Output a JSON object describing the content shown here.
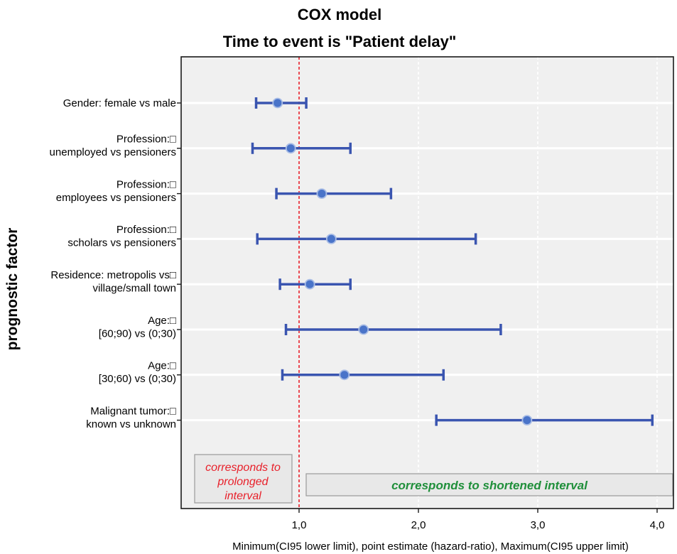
{
  "chart_data": {
    "type": "forest",
    "title": "COX model",
    "subtitle": "Time to event is \"Patient delay\"",
    "xlabel": "Minimum(CI95 lower limit), point estimate (hazard-ratio), Maximum(CI95 upper limit)",
    "ylabel": "prognostic factor",
    "xlim": [
      0.0,
      4.2
    ],
    "xticks": [
      1.0,
      2.0,
      3.0,
      4.0
    ],
    "xtick_labels": [
      "1,0",
      "2,0",
      "3,0",
      "4,0"
    ],
    "reference_line": 1.0,
    "grid": true,
    "categories": [
      {
        "lines": [
          "Gender: female vs male"
        ],
        "lower": 0.64,
        "estimate": 0.82,
        "upper": 1.06
      },
      {
        "lines": [
          "Profession:□",
          "unemployed vs pensioners"
        ],
        "lower": 0.61,
        "estimate": 0.93,
        "upper": 1.43
      },
      {
        "lines": [
          "Profession:□",
          "employees vs pensioners"
        ],
        "lower": 0.81,
        "estimate": 1.19,
        "upper": 1.77
      },
      {
        "lines": [
          "Profession:□",
          "scholars vs pensioners"
        ],
        "lower": 0.65,
        "estimate": 1.27,
        "upper": 2.48
      },
      {
        "lines": [
          "Residence: metropolis vs□",
          "village/small town"
        ],
        "lower": 0.84,
        "estimate": 1.09,
        "upper": 1.43
      },
      {
        "lines": [
          "Age:□",
          "[60;90) vs (0;30)"
        ],
        "lower": 0.89,
        "estimate": 1.54,
        "upper": 2.69
      },
      {
        "lines": [
          "Age:□",
          "[30;60) vs (0;30)"
        ],
        "lower": 0.86,
        "estimate": 1.38,
        "upper": 2.21
      },
      {
        "lines": [
          "Malignant tumor:□",
          "known vs unknown"
        ],
        "lower": 2.15,
        "estimate": 2.91,
        "upper": 3.96
      }
    ],
    "annotations": {
      "left": [
        "corresponds to",
        "prolonged",
        "interval"
      ],
      "right": "corresponds to shortened interval"
    }
  },
  "colors": {
    "series": "#3a55b0",
    "marker": "#4a74c9",
    "reference_line": "#e8212b",
    "plot_background": "#f0f0f0",
    "left_annotation": "#e8212b",
    "right_annotation": "#1f8f3a"
  }
}
